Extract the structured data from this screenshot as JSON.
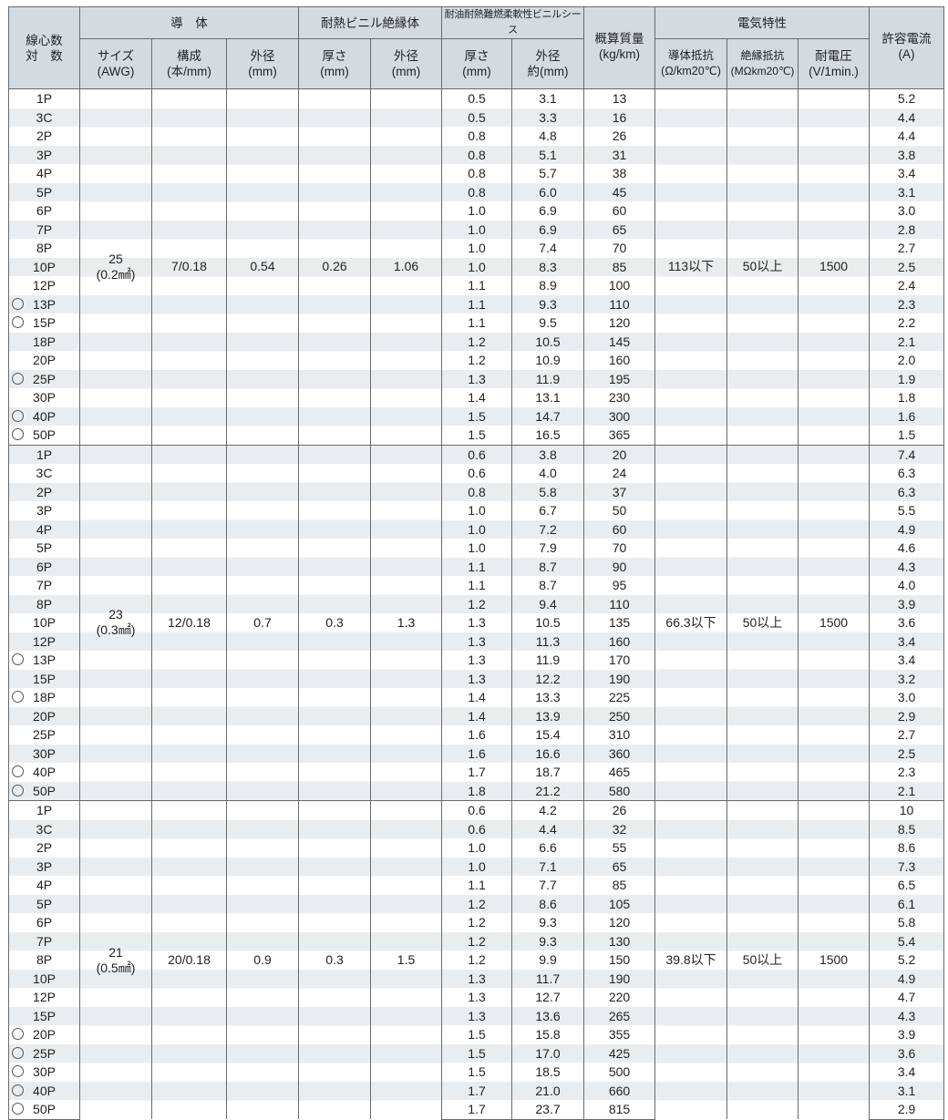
{
  "header": {
    "count": [
      "線心数",
      "対　数"
    ],
    "conductor": "導　体",
    "size": [
      "サイズ",
      "(AWG)"
    ],
    "construction": [
      "構成",
      "(本/mm)"
    ],
    "cond_od": [
      "外径",
      "(mm)"
    ],
    "insulation": "耐熱ビニル絶縁体",
    "ins_thick": [
      "厚さ",
      "(mm)"
    ],
    "ins_od": [
      "外径",
      "(mm)"
    ],
    "sheath": "耐油耐熱難燃柔軟性ビニルシース",
    "sh_thick": [
      "厚さ",
      "(mm)"
    ],
    "sh_od": [
      "外径",
      "約(mm)"
    ],
    "mass": [
      "概算質量",
      "(kg/km)"
    ],
    "electrical": "電気特性",
    "resistance": [
      "導体抵抗",
      "(Ω/km20℃)"
    ],
    "ins_resistance": [
      "絶縁抵抗",
      "(MΩkm20℃)"
    ],
    "voltage": [
      "耐電圧",
      "(V/1min.)"
    ],
    "current": [
      "許容電流",
      "(A)"
    ]
  },
  "groups": [
    {
      "awg": "25",
      "area": "(0.2㎟)",
      "construction": "7/0.18",
      "cond_od": "0.54",
      "ins_thick": "0.26",
      "ins_od": "1.06",
      "resistance": "113以下",
      "ins_resistance": "50以上",
      "voltage": "1500",
      "rows": [
        [
          "1P",
          false,
          "0.5",
          "3.1",
          "13",
          "5.2"
        ],
        [
          "3C",
          false,
          "0.5",
          "3.3",
          "16",
          "4.4"
        ],
        [
          "2P",
          false,
          "0.8",
          "4.8",
          "26",
          "4.4"
        ],
        [
          "3P",
          false,
          "0.8",
          "5.1",
          "31",
          "3.8"
        ],
        [
          "4P",
          false,
          "0.8",
          "5.7",
          "38",
          "3.4"
        ],
        [
          "5P",
          false,
          "0.8",
          "6.0",
          "45",
          "3.1"
        ],
        [
          "6P",
          false,
          "1.0",
          "6.9",
          "60",
          "3.0"
        ],
        [
          "7P",
          false,
          "1.0",
          "6.9",
          "65",
          "2.8"
        ],
        [
          "8P",
          false,
          "1.0",
          "7.4",
          "70",
          "2.7"
        ],
        [
          "10P",
          false,
          "1.0",
          "8.3",
          "85",
          "2.5"
        ],
        [
          "12P",
          false,
          "1.1",
          "8.9",
          "100",
          "2.4"
        ],
        [
          "13P",
          true,
          "1.1",
          "9.3",
          "110",
          "2.3"
        ],
        [
          "15P",
          true,
          "1.1",
          "9.5",
          "120",
          "2.2"
        ],
        [
          "18P",
          false,
          "1.2",
          "10.5",
          "145",
          "2.1"
        ],
        [
          "20P",
          false,
          "1.2",
          "10.9",
          "160",
          "2.0"
        ],
        [
          "25P",
          true,
          "1.3",
          "11.9",
          "195",
          "1.9"
        ],
        [
          "30P",
          false,
          "1.4",
          "13.1",
          "230",
          "1.8"
        ],
        [
          "40P",
          true,
          "1.5",
          "14.7",
          "300",
          "1.6"
        ],
        [
          "50P",
          true,
          "1.5",
          "16.5",
          "365",
          "1.5"
        ]
      ]
    },
    {
      "awg": "23",
      "area": "(0.3㎟)",
      "construction": "12/0.18",
      "cond_od": "0.7",
      "ins_thick": "0.3",
      "ins_od": "1.3",
      "resistance": "66.3以下",
      "ins_resistance": "50以上",
      "voltage": "1500",
      "rows": [
        [
          "1P",
          false,
          "0.6",
          "3.8",
          "20",
          "7.4"
        ],
        [
          "3C",
          false,
          "0.6",
          "4.0",
          "24",
          "6.3"
        ],
        [
          "2P",
          false,
          "0.8",
          "5.8",
          "37",
          "6.3"
        ],
        [
          "3P",
          false,
          "1.0",
          "6.7",
          "50",
          "5.5"
        ],
        [
          "4P",
          false,
          "1.0",
          "7.2",
          "60",
          "4.9"
        ],
        [
          "5P",
          false,
          "1.0",
          "7.9",
          "70",
          "4.6"
        ],
        [
          "6P",
          false,
          "1.1",
          "8.7",
          "90",
          "4.3"
        ],
        [
          "7P",
          false,
          "1.1",
          "8.7",
          "95",
          "4.0"
        ],
        [
          "8P",
          false,
          "1.2",
          "9.4",
          "110",
          "3.9"
        ],
        [
          "10P",
          false,
          "1.3",
          "10.5",
          "135",
          "3.6"
        ],
        [
          "12P",
          false,
          "1.3",
          "11.3",
          "160",
          "3.4"
        ],
        [
          "13P",
          true,
          "1.3",
          "11.9",
          "170",
          "3.4"
        ],
        [
          "15P",
          false,
          "1.3",
          "12.2",
          "190",
          "3.2"
        ],
        [
          "18P",
          true,
          "1.4",
          "13.3",
          "225",
          "3.0"
        ],
        [
          "20P",
          false,
          "1.4",
          "13.9",
          "250",
          "2.9"
        ],
        [
          "25P",
          false,
          "1.6",
          "15.4",
          "310",
          "2.7"
        ],
        [
          "30P",
          false,
          "1.6",
          "16.6",
          "360",
          "2.5"
        ],
        [
          "40P",
          true,
          "1.7",
          "18.7",
          "465",
          "2.3"
        ],
        [
          "50P",
          true,
          "1.8",
          "21.2",
          "580",
          "2.1"
        ]
      ]
    },
    {
      "awg": "21",
      "area": "(0.5㎟)",
      "construction": "20/0.18",
      "cond_od": "0.9",
      "ins_thick": "0.3",
      "ins_od": "1.5",
      "resistance": "39.8以下",
      "ins_resistance": "50以上",
      "voltage": "1500",
      "rows": [
        [
          "1P",
          false,
          "0.6",
          "4.2",
          "26",
          "10"
        ],
        [
          "3C",
          false,
          "0.6",
          "4.4",
          "32",
          "8.5"
        ],
        [
          "2P",
          false,
          "1.0",
          "6.6",
          "55",
          "8.6"
        ],
        [
          "3P",
          false,
          "1.0",
          "7.1",
          "65",
          "7.3"
        ],
        [
          "4P",
          false,
          "1.1",
          "7.7",
          "85",
          "6.5"
        ],
        [
          "5P",
          false,
          "1.2",
          "8.6",
          "105",
          "6.1"
        ],
        [
          "6P",
          false,
          "1.2",
          "9.3",
          "120",
          "5.8"
        ],
        [
          "7P",
          false,
          "1.2",
          "9.3",
          "130",
          "5.4"
        ],
        [
          "8P",
          false,
          "1.2",
          "9.9",
          "150",
          "5.2"
        ],
        [
          "10P",
          false,
          "1.3",
          "11.7",
          "190",
          "4.9"
        ],
        [
          "12P",
          false,
          "1.3",
          "12.7",
          "220",
          "4.7"
        ],
        [
          "15P",
          false,
          "1.3",
          "13.6",
          "265",
          "4.3"
        ],
        [
          "20P",
          true,
          "1.5",
          "15.8",
          "355",
          "3.9"
        ],
        [
          "25P",
          true,
          "1.5",
          "17.0",
          "425",
          "3.6"
        ],
        [
          "30P",
          true,
          "1.5",
          "18.5",
          "500",
          "3.4"
        ],
        [
          "40P",
          true,
          "1.7",
          "21.0",
          "660",
          "3.1"
        ],
        [
          "50P",
          true,
          "1.7",
          "23.7",
          "815",
          "2.9"
        ]
      ]
    }
  ]
}
